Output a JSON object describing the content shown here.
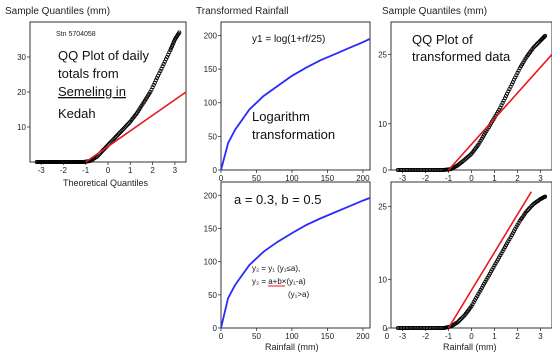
{
  "colors": {
    "qq_points": "#000000",
    "reference_line": "#e8191b",
    "transform_curve": "#2a2aff",
    "panel_border": "#333333"
  },
  "panels": {
    "tl": {
      "ylabel": "Sample Quantiles (mm)",
      "station": "Stn 5704058",
      "xlabel": "Theoretical Quantiles",
      "note_lines": [
        "QQ Plot of daily",
        "totals from",
        "Semeling in",
        "Kedah"
      ],
      "xticks": [
        "-3",
        "-2",
        "-1",
        "0",
        "1",
        "2",
        "3"
      ],
      "yticks": [
        "10",
        "20",
        "30"
      ]
    },
    "tm": {
      "ylabel": "Transformed Rainfall",
      "formula": "y1 = log(1+rf/25)",
      "note_lines": [
        "Logarithm",
        "transformation"
      ],
      "xticks": [
        "0",
        "50",
        "100",
        "150",
        "200"
      ],
      "yticks": [
        "0",
        "50",
        "100",
        "150",
        "200"
      ]
    },
    "tr": {
      "ylabel": "Sample Quantiles (mm)",
      "note_lines": [
        "QQ Plot of",
        "transformed data"
      ],
      "xticks": [
        "-3",
        "-2",
        "-1",
        "0",
        "1",
        "2",
        "3"
      ],
      "yticks": [
        "0",
        "10",
        "25"
      ]
    },
    "bm": {
      "params": "a = 0.3, b = 0.5",
      "eq1": "y₂ = y₁ (y₁≤a),",
      "eq2": "y₂ = a+b×(y₁-a)",
      "eq3": "(y₁>a)",
      "xlabel": "Rainfall (mm)",
      "xticks": [
        "0",
        "50",
        "100",
        "150",
        "200"
      ],
      "yticks": [
        "0",
        "50",
        "100",
        "150",
        "200"
      ]
    },
    "br": {
      "xlabel": "Rainfall (mm)",
      "xticks": [
        "0",
        "-3",
        "-2",
        "-1",
        "0",
        "1",
        "2",
        "3"
      ],
      "yticks": [
        "0",
        "10",
        "25"
      ]
    }
  },
  "chart_data": [
    {
      "type": "scatter",
      "panel": "top-left",
      "ylabel": "Sample Quantiles (mm)",
      "xlabel": "Theoretical Quantiles",
      "xlim": [
        -3.5,
        3.5
      ],
      "ylim": [
        0,
        40
      ],
      "series": [
        {
          "x": [
            -3.2,
            -2.9,
            -2.6,
            -2.3,
            -2.0,
            -1.7,
            -1.4,
            -1.1,
            -0.8,
            -0.5,
            -0.2,
            0.1,
            0.4,
            0.7,
            1.0,
            1.3,
            1.6,
            1.9,
            2.2,
            2.5,
            2.8,
            3.0,
            3.2
          ],
          "y": [
            0,
            0,
            0,
            0,
            0,
            0,
            0,
            0,
            0.3,
            1.5,
            3.5,
            5.5,
            7.5,
            9.5,
            11.5,
            14,
            17,
            20,
            24,
            28,
            32,
            35,
            37
          ]
        }
      ],
      "reference_line": {
        "x": [
          -1.0,
          3.5
        ],
        "y": [
          0,
          20
        ]
      }
    },
    {
      "type": "line",
      "panel": "top-middle",
      "ylabel": "Transformed Rainfall",
      "xlim": [
        0,
        210
      ],
      "ylim": [
        0,
        220
      ],
      "series": [
        {
          "x": [
            0,
            10,
            20,
            40,
            60,
            80,
            100,
            120,
            140,
            160,
            180,
            200,
            210
          ],
          "y": [
            0,
            40,
            60,
            90,
            110,
            125,
            140,
            152,
            163,
            172,
            181,
            190,
            195
          ]
        }
      ]
    },
    {
      "type": "scatter",
      "panel": "top-right",
      "ylabel": "Sample Quantiles (mm)",
      "xlim": [
        -3.5,
        3.5
      ],
      "ylim": [
        0,
        32
      ],
      "series": [
        {
          "x": [
            -3.2,
            -2.8,
            -2.4,
            -2.0,
            -1.6,
            -1.2,
            -0.9,
            -0.6,
            -0.3,
            0,
            0.3,
            0.6,
            0.9,
            1.2,
            1.5,
            1.8,
            2.1,
            2.4,
            2.7,
            3.0,
            3.2
          ],
          "y": [
            0,
            0,
            0,
            0,
            0,
            0,
            0.2,
            1.0,
            2.2,
            3.5,
            5.5,
            8,
            10.5,
            13,
            16,
            19,
            22,
            24.5,
            26.5,
            28,
            29
          ]
        }
      ],
      "reference_line": {
        "x": [
          -1.0,
          3.5
        ],
        "y": [
          0,
          25
        ]
      }
    },
    {
      "type": "line",
      "panel": "bottom-middle",
      "xlabel": "Rainfall (mm)",
      "xlim": [
        0,
        210
      ],
      "ylim": [
        0,
        220
      ],
      "series": [
        {
          "x": [
            0,
            10,
            20,
            40,
            60,
            80,
            100,
            120,
            140,
            160,
            180,
            200,
            210
          ],
          "y": [
            0,
            45,
            65,
            95,
            115,
            130,
            143,
            155,
            165,
            174,
            183,
            192,
            196
          ]
        }
      ]
    },
    {
      "type": "scatter",
      "panel": "bottom-right",
      "xlabel": "Rainfall (mm)",
      "xlim": [
        -3.5,
        3.5
      ],
      "ylim": [
        0,
        30
      ],
      "series": [
        {
          "x": [
            -3.2,
            -2.8,
            -2.4,
            -2.0,
            -1.6,
            -1.2,
            -0.9,
            -0.6,
            -0.3,
            0,
            0.3,
            0.6,
            0.9,
            1.2,
            1.5,
            1.8,
            2.1,
            2.4,
            2.7,
            3.0,
            3.2
          ],
          "y": [
            0,
            0,
            0,
            0,
            0,
            0,
            0.3,
            1.2,
            2.6,
            4.5,
            7,
            9.5,
            12,
            14.5,
            17,
            19.5,
            22,
            24,
            25.5,
            26.5,
            27
          ]
        }
      ],
      "reference_line": {
        "x": [
          -1.0,
          2.6
        ],
        "y": [
          0,
          28
        ]
      }
    }
  ]
}
